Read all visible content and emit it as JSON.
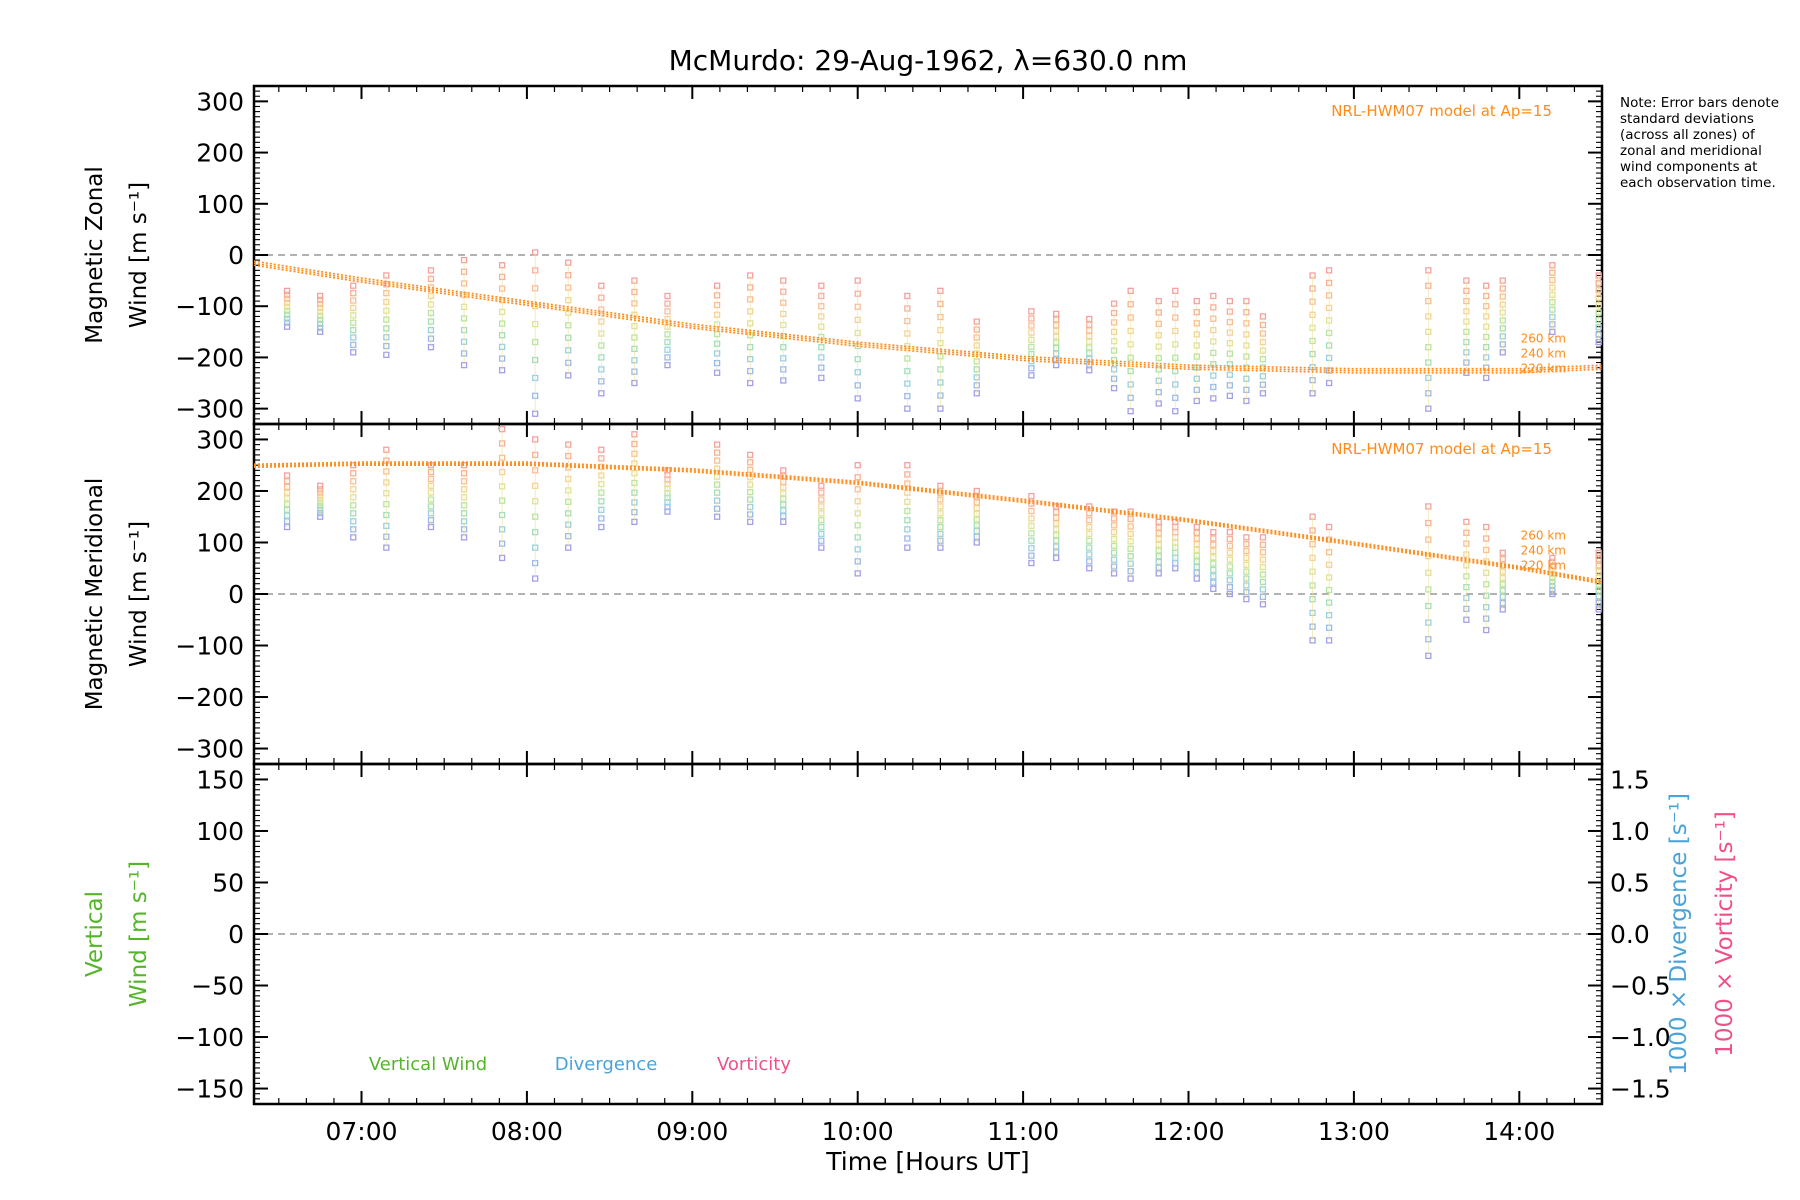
{
  "figure": {
    "title": "McMurdo: 29-Aug-1962, λ=630.0 nm",
    "note": "Note: Error bars denote standard deviations (across all zones) of zonal and meridional wind components at each observation time.",
    "xlabel": "Time [Hours UT]",
    "x_tick_labels": [
      "07:00",
      "08:00",
      "09:00",
      "10:00",
      "11:00",
      "12:00",
      "13:00",
      "14:00"
    ]
  },
  "colors": {
    "model": "#ff8c1a",
    "vertical": "#55b52a",
    "divergence": "#4aa3d8",
    "vorticity": "#f0508a",
    "zero_line": "#999999"
  },
  "chart_data": [
    {
      "id": "zonal",
      "type": "scatter",
      "ylabel": [
        "Magnetic Zonal",
        "Wind [m s⁻¹]"
      ],
      "xlim": [
        6.35,
        14.5
      ],
      "ylim": [
        -330,
        330
      ],
      "y_ticks": [
        -300,
        -200,
        -100,
        0,
        100,
        200,
        300
      ],
      "y_tick_labels": [
        "−300",
        "−200",
        "−100",
        "0",
        "100",
        "200",
        "300"
      ],
      "model_label": "NRL-HWM07 model at Ap=15",
      "altitude_labels": [
        "260 km",
        "240 km",
        "220 km"
      ],
      "model_series": [
        {
          "name": "260 km",
          "x": [
            6.35,
            7,
            8,
            9,
            10,
            11,
            12,
            13,
            14,
            14.5
          ],
          "y": [
            -12,
            -45,
            -90,
            -135,
            -170,
            -198,
            -215,
            -222,
            -222,
            -215
          ]
        },
        {
          "name": "240 km",
          "x": [
            6.35,
            7,
            8,
            9,
            10,
            11,
            12,
            13,
            14,
            14.5
          ],
          "y": [
            -16,
            -49,
            -94,
            -139,
            -174,
            -202,
            -219,
            -226,
            -226,
            -219
          ]
        },
        {
          "name": "220 km",
          "x": [
            6.35,
            7,
            8,
            9,
            10,
            11,
            12,
            13,
            14,
            14.5
          ],
          "y": [
            -20,
            -53,
            -98,
            -143,
            -178,
            -206,
            -223,
            -230,
            -230,
            -223
          ]
        }
      ],
      "observations": [
        {
          "x": 6.55,
          "low": -140,
          "high": -70
        },
        {
          "x": 6.75,
          "low": -150,
          "high": -80
        },
        {
          "x": 6.95,
          "low": -190,
          "high": -60
        },
        {
          "x": 7.15,
          "low": -195,
          "high": -40
        },
        {
          "x": 7.42,
          "low": -180,
          "high": -30
        },
        {
          "x": 7.62,
          "low": -215,
          "high": -10
        },
        {
          "x": 7.85,
          "low": -225,
          "high": -20
        },
        {
          "x": 8.05,
          "low": -310,
          "high": 5
        },
        {
          "x": 8.25,
          "low": -235,
          "high": -15
        },
        {
          "x": 8.45,
          "low": -270,
          "high": -60
        },
        {
          "x": 8.65,
          "low": -250,
          "high": -50
        },
        {
          "x": 8.85,
          "low": -215,
          "high": -80
        },
        {
          "x": 9.15,
          "low": -230,
          "high": -60
        },
        {
          "x": 9.35,
          "low": -250,
          "high": -40
        },
        {
          "x": 9.55,
          "low": -245,
          "high": -50
        },
        {
          "x": 9.78,
          "low": -240,
          "high": -60
        },
        {
          "x": 10.0,
          "low": -280,
          "high": -50
        },
        {
          "x": 10.3,
          "low": -300,
          "high": -80
        },
        {
          "x": 10.5,
          "low": -300,
          "high": -70
        },
        {
          "x": 10.72,
          "low": -270,
          "high": -130
        },
        {
          "x": 11.05,
          "low": -235,
          "high": -110
        },
        {
          "x": 11.2,
          "low": -215,
          "high": -115
        },
        {
          "x": 11.4,
          "low": -225,
          "high": -125
        },
        {
          "x": 11.55,
          "low": -260,
          "high": -95
        },
        {
          "x": 11.65,
          "low": -305,
          "high": -70
        },
        {
          "x": 11.82,
          "low": -290,
          "high": -90
        },
        {
          "x": 11.92,
          "low": -305,
          "high": -70
        },
        {
          "x": 12.05,
          "low": -285,
          "high": -90
        },
        {
          "x": 12.15,
          "low": -280,
          "high": -80
        },
        {
          "x": 12.25,
          "low": -275,
          "high": -90
        },
        {
          "x": 12.35,
          "low": -285,
          "high": -90
        },
        {
          "x": 12.45,
          "low": -270,
          "high": -120
        },
        {
          "x": 12.75,
          "low": -270,
          "high": -40
        },
        {
          "x": 12.85,
          "low": -250,
          "high": -30
        },
        {
          "x": 13.45,
          "low": -300,
          "high": -30
        },
        {
          "x": 13.68,
          "low": -230,
          "high": -50
        },
        {
          "x": 13.8,
          "low": -240,
          "high": -60
        },
        {
          "x": 13.9,
          "low": -190,
          "high": -50
        },
        {
          "x": 14.2,
          "low": -150,
          "high": -20
        },
        {
          "x": 14.48,
          "low": -170,
          "high": -40
        }
      ]
    },
    {
      "id": "meridional",
      "type": "scatter",
      "ylabel": [
        "Magnetic Meridional",
        "Wind [m s⁻¹]"
      ],
      "xlim": [
        6.35,
        14.5
      ],
      "ylim": [
        -330,
        330
      ],
      "y_ticks": [
        -300,
        -200,
        -100,
        0,
        100,
        200,
        300
      ],
      "y_tick_labels": [
        "−300",
        "−200",
        "−100",
        "0",
        "100",
        "200",
        "300"
      ],
      "model_label": "NRL-HWM07 model at Ap=15",
      "altitude_labels": [
        "260 km",
        "240 km",
        "220 km"
      ],
      "model_series": [
        {
          "name": "260 km",
          "x": [
            6.35,
            7,
            8,
            9,
            10,
            11,
            12,
            13,
            14,
            14.5
          ],
          "y": [
            246,
            250,
            250,
            237,
            213,
            178,
            140,
            95,
            48,
            20
          ]
        },
        {
          "name": "240 km",
          "x": [
            6.35,
            7,
            8,
            9,
            10,
            11,
            12,
            13,
            14,
            14.5
          ],
          "y": [
            249,
            253,
            253,
            240,
            216,
            181,
            143,
            98,
            51,
            23
          ]
        },
        {
          "name": "220 km",
          "x": [
            6.35,
            7,
            8,
            9,
            10,
            11,
            12,
            13,
            14,
            14.5
          ],
          "y": [
            252,
            256,
            256,
            243,
            219,
            184,
            146,
            101,
            54,
            26
          ]
        }
      ],
      "observations": [
        {
          "x": 6.55,
          "low": 130,
          "high": 230
        },
        {
          "x": 6.75,
          "low": 150,
          "high": 210
        },
        {
          "x": 6.95,
          "low": 110,
          "high": 250
        },
        {
          "x": 7.15,
          "low": 90,
          "high": 280
        },
        {
          "x": 7.42,
          "low": 130,
          "high": 250
        },
        {
          "x": 7.62,
          "low": 110,
          "high": 250
        },
        {
          "x": 7.85,
          "low": 70,
          "high": 320
        },
        {
          "x": 8.05,
          "low": 30,
          "high": 300
        },
        {
          "x": 8.25,
          "low": 90,
          "high": 290
        },
        {
          "x": 8.45,
          "low": 130,
          "high": 280
        },
        {
          "x": 8.65,
          "low": 140,
          "high": 310
        },
        {
          "x": 8.85,
          "low": 160,
          "high": 240
        },
        {
          "x": 9.15,
          "low": 150,
          "high": 290
        },
        {
          "x": 9.35,
          "low": 140,
          "high": 270
        },
        {
          "x": 9.55,
          "low": 140,
          "high": 240
        },
        {
          "x": 9.78,
          "low": 90,
          "high": 210
        },
        {
          "x": 10.0,
          "low": 40,
          "high": 250
        },
        {
          "x": 10.3,
          "low": 90,
          "high": 250
        },
        {
          "x": 10.5,
          "low": 90,
          "high": 210
        },
        {
          "x": 10.72,
          "low": 100,
          "high": 200
        },
        {
          "x": 11.05,
          "low": 60,
          "high": 190
        },
        {
          "x": 11.2,
          "low": 70,
          "high": 170
        },
        {
          "x": 11.4,
          "low": 50,
          "high": 170
        },
        {
          "x": 11.55,
          "low": 40,
          "high": 160
        },
        {
          "x": 11.65,
          "low": 30,
          "high": 160
        },
        {
          "x": 11.82,
          "low": 40,
          "high": 140
        },
        {
          "x": 11.92,
          "low": 50,
          "high": 140
        },
        {
          "x": 12.05,
          "low": 30,
          "high": 130
        },
        {
          "x": 12.15,
          "low": 10,
          "high": 120
        },
        {
          "x": 12.25,
          "low": 0,
          "high": 120
        },
        {
          "x": 12.35,
          "low": -10,
          "high": 110
        },
        {
          "x": 12.45,
          "low": -20,
          "high": 110
        },
        {
          "x": 12.75,
          "low": -90,
          "high": 150
        },
        {
          "x": 12.85,
          "low": -90,
          "high": 130
        },
        {
          "x": 13.45,
          "low": -120,
          "high": 170
        },
        {
          "x": 13.68,
          "low": -50,
          "high": 140
        },
        {
          "x": 13.8,
          "low": -70,
          "high": 130
        },
        {
          "x": 13.9,
          "low": -30,
          "high": 80
        },
        {
          "x": 14.2,
          "low": 0,
          "high": 70
        },
        {
          "x": 14.48,
          "low": -30,
          "high": 80
        }
      ]
    },
    {
      "id": "vertical",
      "type": "line",
      "ylabel": [
        "Vertical",
        "Wind [m s⁻¹]"
      ],
      "ylabel_right_1": "1000 × Divergence [s⁻¹]",
      "ylabel_right_2": "1000 × Vorticity [s⁻¹]",
      "xlim": [
        6.35,
        14.5
      ],
      "ylim": [
        -165,
        165
      ],
      "y_ticks": [
        -150,
        -100,
        -50,
        0,
        50,
        100,
        150
      ],
      "y_tick_labels": [
        "−150",
        "−100",
        "−50",
        "0",
        "50",
        "100",
        "150"
      ],
      "y2lim": [
        -1.65,
        1.65
      ],
      "y2_ticks": [
        -1.5,
        -1.0,
        -0.5,
        0.0,
        0.5,
        1.0,
        1.5
      ],
      "y2_tick_labels": [
        "−1.5",
        "−1.0",
        "−0.5",
        "0.0",
        "0.5",
        "1.0",
        "1.5"
      ],
      "legend": [
        "Vertical Wind",
        "Divergence",
        "Vorticity"
      ],
      "series": []
    }
  ]
}
